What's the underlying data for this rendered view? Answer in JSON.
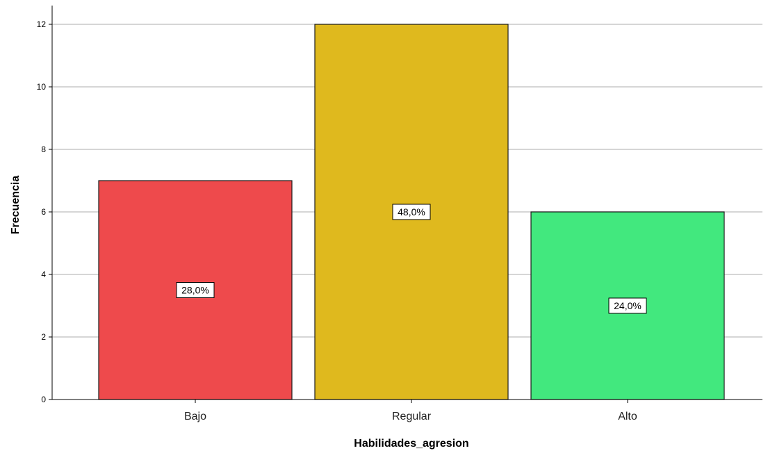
{
  "chart_data": {
    "type": "bar",
    "title": "",
    "xlabel": "Habilidades_agresion",
    "ylabel": "Frecuencia",
    "ylim": [
      0,
      13
    ],
    "yticks": [
      0,
      2,
      4,
      6,
      8,
      10,
      12
    ],
    "grid": true,
    "categories": [
      "Bajo",
      "Regular",
      "Alto"
    ],
    "values": [
      7,
      12,
      6
    ],
    "data_labels": [
      "28,0%",
      "48,0%",
      "24,0%"
    ],
    "colors": [
      "#ee4a4c",
      "#dfb91e",
      "#42e87e"
    ],
    "bar_edge_color": "#1a1a1a",
    "grid_color": "#c8c8c8"
  }
}
